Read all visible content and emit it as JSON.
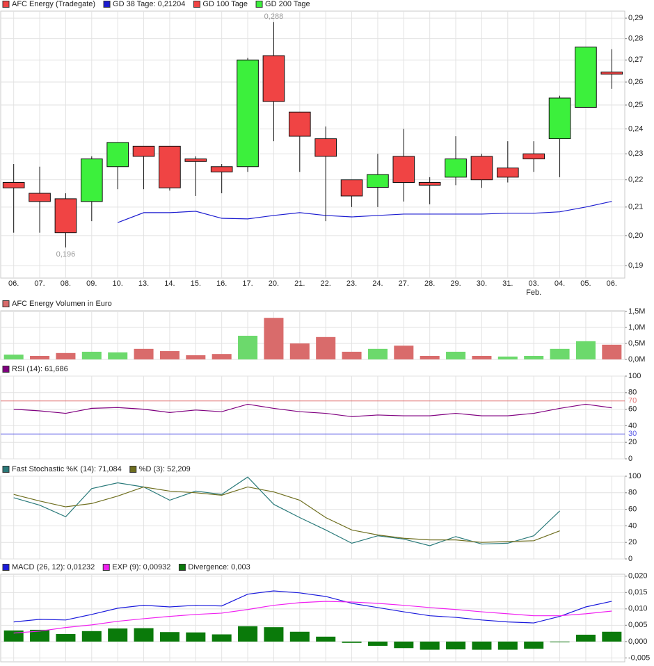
{
  "chart_data": [
    {
      "type": "candlestick",
      "name": "AFC Energy (Tradegate)",
      "color": "#f04444",
      "up_color": "#3cf03c",
      "down_color": "#f04444",
      "log_scale": true,
      "grid": true,
      "categories": [
        "06.",
        "07.",
        "08.",
        "09.",
        "10.",
        "13.",
        "14.",
        "15.",
        "16.",
        "17.",
        "20.",
        "21.",
        "22.",
        "23.",
        "24.",
        "27.",
        "28.",
        "29.",
        "30.",
        "31.",
        "03.",
        "04.",
        "05.",
        "06."
      ],
      "x_sublabels": [
        null,
        null,
        null,
        null,
        null,
        null,
        null,
        null,
        null,
        null,
        null,
        null,
        null,
        null,
        null,
        null,
        null,
        null,
        null,
        null,
        "Feb.",
        null,
        null,
        null
      ],
      "open": [
        0.219,
        0.215,
        0.213,
        0.212,
        0.225,
        0.233,
        0.233,
        0.228,
        0.225,
        0.225,
        0.272,
        0.247,
        0.236,
        0.22,
        0.2172,
        0.229,
        0.219,
        0.221,
        0.229,
        0.2245,
        0.23,
        0.236,
        0.249,
        0.2645
      ],
      "high": [
        0.226,
        0.225,
        0.215,
        0.229,
        0.2345,
        0.233,
        0.233,
        0.229,
        0.226,
        0.271,
        0.288,
        0.247,
        0.241,
        0.22,
        0.23,
        0.24,
        0.221,
        0.237,
        0.23,
        0.235,
        0.235,
        0.254,
        0.276,
        0.275
      ],
      "low": [
        0.201,
        0.201,
        0.196,
        0.205,
        0.2165,
        0.2165,
        0.216,
        0.214,
        0.215,
        0.223,
        0.235,
        0.223,
        0.205,
        0.21,
        0.21,
        0.212,
        0.211,
        0.218,
        0.217,
        0.219,
        0.223,
        0.221,
        0.249,
        0.257
      ],
      "close": [
        0.217,
        0.212,
        0.201,
        0.228,
        0.2345,
        0.229,
        0.217,
        0.227,
        0.223,
        0.27,
        0.2515,
        0.237,
        0.229,
        0.214,
        0.222,
        0.219,
        0.218,
        0.228,
        0.22,
        0.221,
        0.228,
        0.253,
        0.276,
        0.2635
      ],
      "high_labels": [
        null,
        null,
        null,
        null,
        null,
        null,
        null,
        null,
        null,
        null,
        "0,288",
        null,
        null,
        null,
        null,
        null,
        null,
        null,
        null,
        null,
        null,
        null,
        null,
        null
      ],
      "low_labels": [
        null,
        null,
        "0,196",
        null,
        null,
        null,
        null,
        null,
        null,
        null,
        null,
        null,
        null,
        null,
        null,
        null,
        null,
        null,
        null,
        null,
        null,
        null,
        null,
        null
      ],
      "series": [
        {
          "name": "GD 38 Tage: 0,21204",
          "color": "#1c1cd0",
          "values": [
            null,
            null,
            null,
            null,
            0.2045,
            0.208,
            0.208,
            0.2085,
            0.206,
            0.2058,
            0.207,
            0.208,
            0.207,
            0.2065,
            0.207,
            0.2075,
            0.2075,
            0.2075,
            0.2075,
            0.2078,
            0.2078,
            0.2083,
            0.21,
            0.21204
          ]
        },
        {
          "name": "GD 100 Tage",
          "color": "#f04444"
        },
        {
          "name": "GD 200 Tage",
          "color": "#3cf03c"
        }
      ],
      "ylim": [
        0.186,
        0.2935
      ],
      "yticks": [
        {
          "value": 0.19,
          "label": "0,19"
        },
        {
          "value": 0.2,
          "label": "0,20"
        },
        {
          "value": 0.21,
          "label": "0,21"
        },
        {
          "value": 0.22,
          "label": "0,22"
        },
        {
          "value": 0.23,
          "label": "0,23"
        },
        {
          "value": 0.24,
          "label": "0,24"
        },
        {
          "value": 0.25,
          "label": "0,25"
        },
        {
          "value": 0.26,
          "label": "0,26"
        },
        {
          "value": 0.27,
          "label": "0,27"
        },
        {
          "value": 0.28,
          "label": "0,28"
        },
        {
          "value": 0.29,
          "label": "0,29"
        }
      ]
    },
    {
      "type": "bar",
      "name": "AFC Energy Volumen in Euro",
      "color": "#d96b6b",
      "grid": true,
      "values": [
        150000,
        110000,
        200000,
        240000,
        220000,
        330000,
        260000,
        130000,
        170000,
        740000,
        1300000,
        500000,
        700000,
        240000,
        330000,
        430000,
        110000,
        240000,
        110000,
        90000,
        110000,
        330000,
        570000,
        460000
      ],
      "colors": [
        "#6cd96c",
        "#d96b6b",
        "#d96b6b",
        "#6cd96c",
        "#6cd96c",
        "#d96b6b",
        "#d96b6b",
        "#d96b6b",
        "#d96b6b",
        "#6cd96c",
        "#d96b6b",
        "#d96b6b",
        "#d96b6b",
        "#d96b6b",
        "#6cd96c",
        "#d96b6b",
        "#d96b6b",
        "#6cd96c",
        "#d96b6b",
        "#6cd96c",
        "#6cd96c",
        "#6cd96c",
        "#6cd96c",
        "#d96b6b"
      ],
      "ylim": [
        0,
        1522000
      ],
      "yticks": [
        {
          "value": 0,
          "label": "0,0M"
        },
        {
          "value": 500000,
          "label": "0,5M"
        },
        {
          "value": 1000000,
          "label": "1,0M"
        },
        {
          "value": 1500000,
          "label": "1,5M"
        }
      ]
    },
    {
      "type": "line",
      "grid": true,
      "series": [
        {
          "name": "RSI (14): 61,686",
          "color": "#800080",
          "values": [
            60,
            58,
            55,
            61,
            62,
            60,
            56,
            59,
            57,
            66,
            61,
            57,
            55,
            51,
            53,
            52,
            52,
            55,
            52,
            52,
            55,
            61,
            66,
            61.686
          ]
        }
      ],
      "hlines": [
        {
          "value": 70,
          "color": "#e07070"
        },
        {
          "value": 30,
          "color": "#5a5ae6"
        }
      ],
      "ylim": [
        0,
        100
      ],
      "yticks": [
        0,
        20,
        40,
        60,
        80,
        100
      ]
    },
    {
      "type": "line",
      "grid": true,
      "series": [
        {
          "name": "Fast Stochastic %K (14): 71,084",
          "color": "#2a7a7a",
          "values": [
            74,
            65,
            51,
            85,
            92,
            87,
            71,
            82,
            78,
            99,
            66,
            50,
            35,
            19,
            28,
            24,
            16,
            27,
            18,
            19,
            28,
            58,
            null,
            null
          ]
        },
        {
          "name": "%D (3): 52,209",
          "color": "#6e6e1e",
          "values": [
            78,
            70,
            63,
            67,
            76,
            87,
            82,
            80,
            77,
            87,
            81,
            71,
            50,
            35,
            29,
            25,
            23,
            23,
            20,
            21,
            22,
            34,
            null,
            null
          ]
        }
      ],
      "ylim": [
        0,
        100
      ],
      "yticks": [
        0,
        20,
        40,
        60,
        80,
        100
      ]
    },
    {
      "type": "line",
      "grid": true,
      "series": [
        {
          "name": "MACD (26, 12): 0,01232",
          "color": "#1a1adc",
          "kind": "line",
          "values": [
            0.006,
            0.0068,
            0.0066,
            0.0083,
            0.0102,
            0.0111,
            0.0106,
            0.0111,
            0.0109,
            0.0145,
            0.0155,
            0.0149,
            0.0138,
            0.0117,
            0.0104,
            0.0091,
            0.0079,
            0.0074,
            0.0066,
            0.006,
            0.0057,
            0.0077,
            0.0106,
            0.01232
          ]
        },
        {
          "name": "EXP (9): 0,00932",
          "color": "#f020f0",
          "kind": "line",
          "values": [
            0.0026,
            0.0032,
            0.0043,
            0.0051,
            0.0062,
            0.007,
            0.0077,
            0.0083,
            0.0087,
            0.0098,
            0.0111,
            0.0119,
            0.0123,
            0.0121,
            0.0117,
            0.0111,
            0.0104,
            0.0098,
            0.0091,
            0.0085,
            0.0079,
            0.0079,
            0.0085,
            0.00932
          ]
        },
        {
          "name": "Divergence: 0,003",
          "color": "#0a7a0a",
          "kind": "bar",
          "values": [
            0.0034,
            0.0036,
            0.0023,
            0.0032,
            0.004,
            0.0041,
            0.0029,
            0.0028,
            0.0022,
            0.0047,
            0.0044,
            0.003,
            0.0015,
            -0.0004,
            -0.0013,
            -0.002,
            -0.0025,
            -0.0024,
            -0.0025,
            -0.0025,
            -0.0022,
            -0.0002,
            0.0021,
            0.003
          ]
        }
      ],
      "ylim": [
        -0.0062,
        0.0206
      ],
      "yticks": [
        {
          "value": -0.005,
          "label": "-0,005"
        },
        {
          "value": 0,
          "label": "0,000"
        },
        {
          "value": 0.005,
          "label": "0,005"
        },
        {
          "value": 0.01,
          "label": "0,010"
        },
        {
          "value": 0.015,
          "label": "0,015"
        },
        {
          "value": 0.02,
          "label": "0,020"
        }
      ]
    }
  ]
}
